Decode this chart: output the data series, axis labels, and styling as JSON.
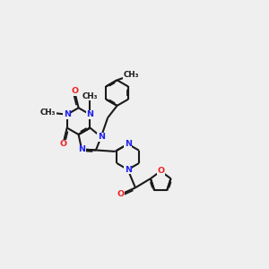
{
  "bg_color": "#efefef",
  "bond_color": "#1a1a1a",
  "N_color": "#2222ee",
  "O_color": "#ee2222",
  "C_color": "#1a1a1a",
  "line_width": 1.5,
  "font_size": 6.8,
  "fig_size": [
    3.0,
    3.0
  ],
  "dpi": 100,
  "xlim": [
    0,
    10
  ],
  "ylim": [
    0,
    10
  ]
}
